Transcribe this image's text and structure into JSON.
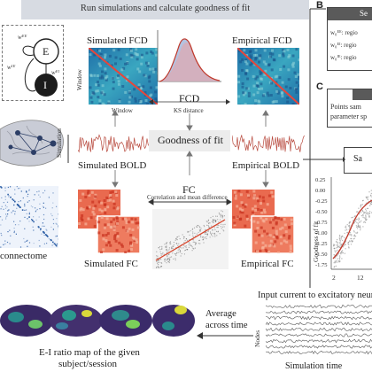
{
  "header": {
    "title": "Run simulations and calculate goodness of fit"
  },
  "panel_b": {
    "label": "B",
    "header_frag": "Se",
    "rows": [
      "w₀ᴱᴱ: regio",
      "w₀ᴱᴵ: regio",
      "w₀ᴵᴱ: regio"
    ]
  },
  "panel_c": {
    "label": "C",
    "box_text": "Points sam\nparameter sp",
    "sam_box": "Sa"
  },
  "model": {
    "node_e": "E",
    "node_i": "I",
    "w_ee": "wᴱᴱ",
    "w_ei": "wᴱᴵ",
    "w_ie": "wᴵᴱ"
  },
  "fcd": {
    "simulated": "Simulated FCD",
    "empirical": "Empirical FCD",
    "axis_window": "Window",
    "center": "FCD",
    "ks": "KS distance"
  },
  "bold": {
    "simulated": "Simulated BOLD",
    "empirical": "Empirical BOLD",
    "goodness": "Goodness of fit",
    "simulation": "Simulation"
  },
  "fc": {
    "center": "FC",
    "sub": "Correlation and mean difference",
    "simulated": "Simulated FC",
    "empirical": "Empirical FC"
  },
  "connectome": {
    "label": "connectome"
  },
  "scatter": {
    "ylabel": "Goodness of fit",
    "yticks": [
      "0.25",
      "0.00",
      "-0.25",
      "-0.50",
      "-0.75",
      "-1.00",
      "-1.25",
      "-1.50",
      "-1.75"
    ],
    "xticks": [
      "2",
      "12"
    ]
  },
  "bottom": {
    "input_current": "Input current to excitatory neuro",
    "average": "Average\nacross time",
    "nodes": "Nodes",
    "sim_time": "Simulation time",
    "ei_map": "E-I ratio map of the given\nsubject/session"
  },
  "colors": {
    "band": "#d7dbe2",
    "fc_red": "#d9452b",
    "fcd_blue": "#2b6cb0",
    "teal": "#3fb7a8",
    "bold_red": "#c0392b"
  }
}
